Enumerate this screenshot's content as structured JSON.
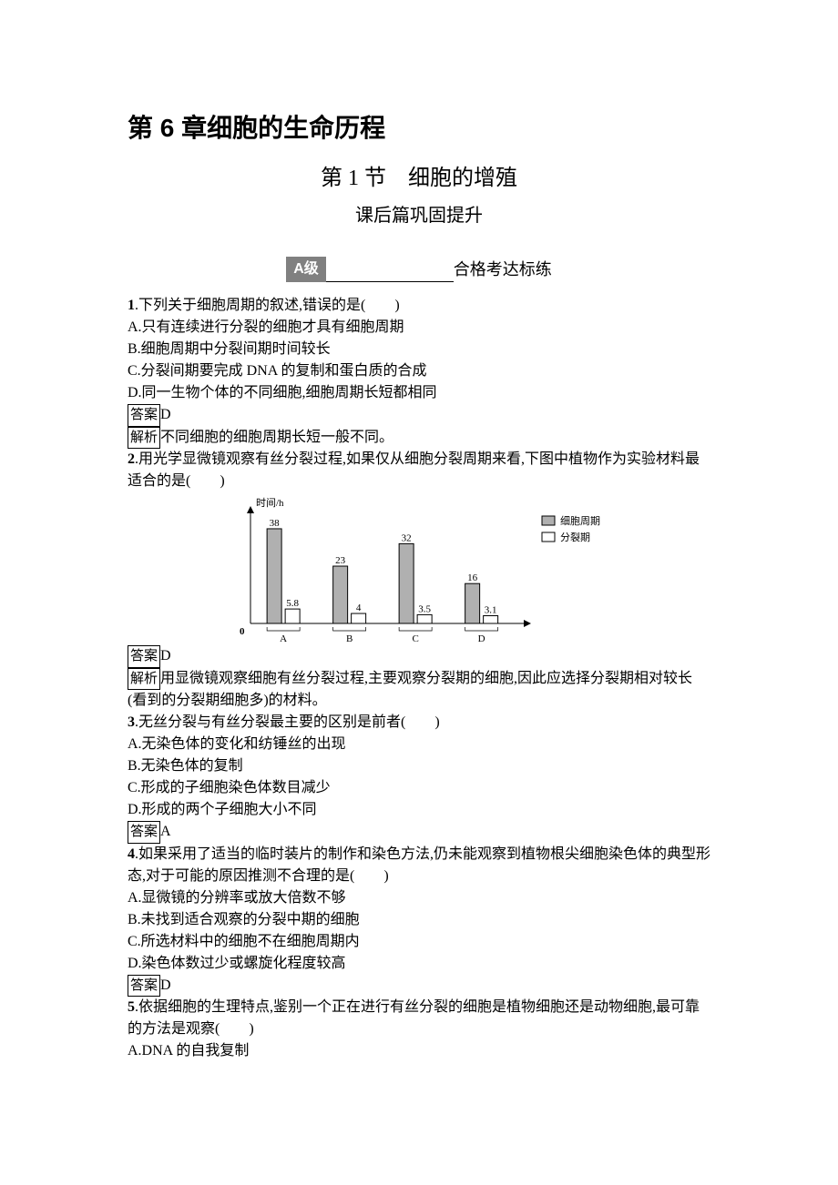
{
  "chapter_title": "第 6 章细胞的生命历程",
  "section_title": "第 1 节　细胞的增殖",
  "subtitle_prefix": "课后篇",
  "subtitle_suffix": "巩固提升",
  "level_badge": "A级",
  "level_text": "合格考达标练",
  "answer_label": "答案",
  "explain_label": "解析",
  "q1": {
    "num": "1",
    "stem": ".下列关于细胞周期的叙述,错误的是(　　)",
    "A": "A.只有连续进行分裂的细胞才具有细胞周期",
    "B": "B.细胞周期中分裂间期时间较长",
    "C": "C.分裂间期要完成 DNA 的复制和蛋白质的合成",
    "D": "D.同一生物个体的不同细胞,细胞周期长短都相同",
    "ans": "D",
    "exp": "不同细胞的细胞周期长短一般不同。"
  },
  "q2": {
    "num": "2",
    "stem": ".用光学显微镜观察有丝分裂过程,如果仅从细胞分裂周期来看,下图中植物作为实验材料最适合的是(　　)",
    "ans": "D",
    "exp": "用显微镜观察细胞有丝分裂过程,主要观察分裂期的细胞,因此应选择分裂期相对较长(看到的分裂期细胞多)的材料。",
    "chart": {
      "type": "bar",
      "y_label": "时间/h",
      "legend": {
        "cycle": "细胞周期",
        "mitosis": "分裂期"
      },
      "cycle_fill": "#b0b0b0",
      "mitosis_fill": "#ffffff",
      "stroke": "#000000",
      "arrow_stroke": "#000000",
      "bracket_stroke": "#000000",
      "categories": [
        "A",
        "B",
        "C",
        "D"
      ],
      "data": [
        {
          "cycle": 38,
          "mitosis": 5.8
        },
        {
          "cycle": 23,
          "mitosis": 4
        },
        {
          "cycle": 32,
          "mitosis": 3.5
        },
        {
          "cycle": 16,
          "mitosis": 3.1
        }
      ],
      "y_max": 42,
      "label_fontsize": 11,
      "origin_label": "0"
    }
  },
  "q3": {
    "num": "3",
    "stem": ".无丝分裂与有丝分裂最主要的区别是前者(　　)",
    "A": "A.无染色体的变化和纺锤丝的出现",
    "B": "B.无染色体的复制",
    "C": "C.形成的子细胞染色体数目减少",
    "D": "D.形成的两个子细胞大小不同",
    "ans": "A"
  },
  "q4": {
    "num": "4",
    "stem": ".如果采用了适当的临时装片的制作和染色方法,仍未能观察到植物根尖细胞染色体的典型形态,对于可能的原因推测不合理的是(　　)",
    "A": "A.显微镜的分辨率或放大倍数不够",
    "B": "B.未找到适合观察的分裂中期的细胞",
    "C": "C.所选材料中的细胞不在细胞周期内",
    "D": "D.染色体数过少或螺旋化程度较高",
    "ans": "D"
  },
  "q5": {
    "num": "5",
    "stem": ".依据细胞的生理特点,鉴别一个正在进行有丝分裂的细胞是植物细胞还是动物细胞,最可靠的方法是观察(　　)",
    "A": "A.DNA 的自我复制"
  }
}
